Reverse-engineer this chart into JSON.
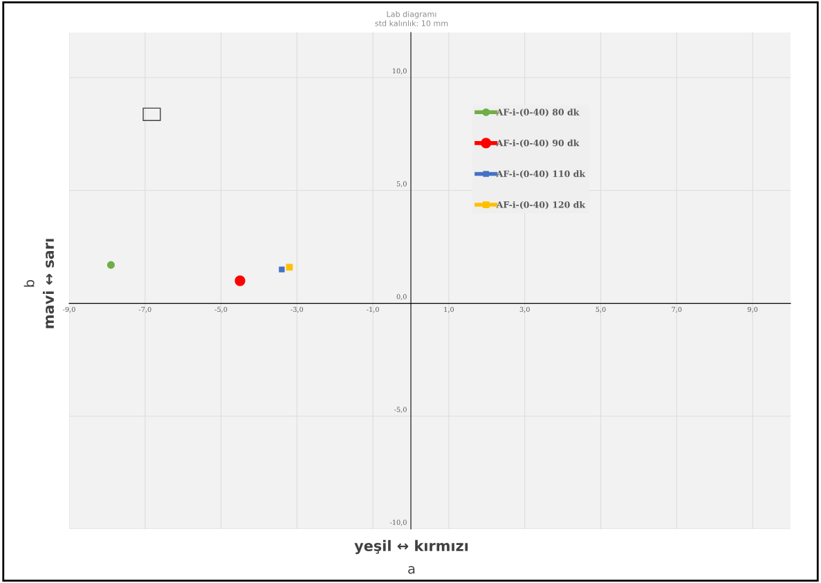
{
  "chart_data": {
    "type": "scatter",
    "title": "Lab diagramı\nstd kalınlık: 10 mm",
    "xlabel": "yeşil ↔ kırmızı\na",
    "ylabel": "mavi ↔ sarı\nb",
    "series": [
      {
        "name": "AF-i-(0-40) 80 dk",
        "color": "#70ad47",
        "x": [
          -7.9
        ],
        "values": [
          1.7
        ],
        "marker": "circle"
      },
      {
        "name": "AF-i-(0-40) 90 dk",
        "color": "#ff0000",
        "x": [
          -4.5
        ],
        "values": [
          1.0
        ],
        "marker": "circle"
      },
      {
        "name": "AF-i-(0-40) 110 dk",
        "color": "#4472c4",
        "x": [
          -3.4
        ],
        "values": [
          1.5
        ],
        "marker": "square"
      },
      {
        "name": "AF-i-(0-40) 120 dk",
        "color": "#ffc000",
        "x": [
          -3.2
        ],
        "values": [
          1.6
        ],
        "marker": "square"
      }
    ],
    "xlim": [
      -9,
      10
    ],
    "ylim": [
      -10,
      12
    ],
    "xticks": [
      {
        "value": -9,
        "label": "-9,0"
      },
      {
        "value": -7,
        "label": "-7,0"
      },
      {
        "value": -5,
        "label": "-5,0"
      },
      {
        "value": -3,
        "label": "-3,0"
      },
      {
        "value": -1,
        "label": "-1,0"
      },
      {
        "value": 1,
        "label": "1,0"
      },
      {
        "value": 3,
        "label": "3,0"
      },
      {
        "value": 5,
        "label": "5,0"
      },
      {
        "value": 7,
        "label": "7,0"
      },
      {
        "value": 9,
        "label": "9,0"
      }
    ],
    "yticks": [
      {
        "value": -10,
        "label": "-10,0"
      },
      {
        "value": -5,
        "label": "-5,0"
      },
      {
        "value": 0,
        "label": "0,0"
      },
      {
        "value": 5,
        "label": "5,0"
      },
      {
        "value": 10,
        "label": "10,0"
      }
    ],
    "grid": true,
    "legend": "top right"
  }
}
